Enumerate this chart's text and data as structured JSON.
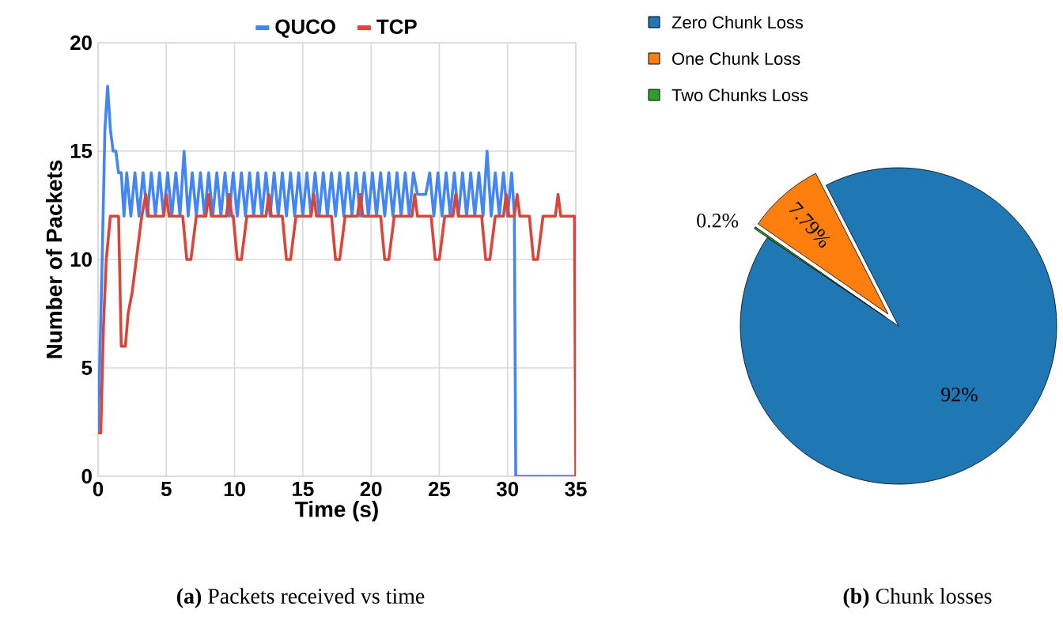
{
  "chart_data": [
    {
      "type": "line",
      "xlabel": "Time (s)",
      "ylabel": "Number of Packets",
      "xlim": [
        0,
        35
      ],
      "ylim": [
        0,
        20
      ],
      "xticks": [
        0,
        5,
        10,
        15,
        20,
        25,
        30,
        35
      ],
      "yticks": [
        0,
        5,
        10,
        15,
        20
      ],
      "grid": true,
      "legend": "top",
      "line_style": "solid",
      "series": [
        {
          "name": "QUCO",
          "color": "#4285f4",
          "x": [
            0,
            0.3,
            0.5,
            0.7,
            0.9,
            1.1,
            1.3,
            1.5,
            1.7,
            1.9,
            2.1,
            2.4,
            2.7,
            3.0,
            3.3,
            3.6,
            3.9,
            4.2,
            4.5,
            4.8,
            5.1,
            5.4,
            5.7,
            6.0,
            6.3,
            6.6,
            6.9,
            7.2,
            7.5,
            7.8,
            8.1,
            8.4,
            8.7,
            9.0,
            9.3,
            9.6,
            9.9,
            10.2,
            10.5,
            10.8,
            11.1,
            11.4,
            11.7,
            12.0,
            12.3,
            12.6,
            12.9,
            13.2,
            13.5,
            13.8,
            14.1,
            14.4,
            14.7,
            15.0,
            15.3,
            15.6,
            15.9,
            16.2,
            16.5,
            16.8,
            17.1,
            17.4,
            17.7,
            18.0,
            18.3,
            18.6,
            18.9,
            19.2,
            19.5,
            19.8,
            20.1,
            20.4,
            20.7,
            21.0,
            21.3,
            21.6,
            21.9,
            22.2,
            22.5,
            22.8,
            23.1,
            23.4,
            23.7,
            24.0,
            24.3,
            24.6,
            24.9,
            25.2,
            25.5,
            25.8,
            26.1,
            26.4,
            26.7,
            27.0,
            27.3,
            27.6,
            27.9,
            28.2,
            28.5,
            28.8,
            29.1,
            29.4,
            29.7,
            30.0,
            30.3,
            30.5,
            30.6,
            35
          ],
          "values": [
            2,
            10,
            16,
            18,
            16,
            15,
            15,
            14,
            14,
            12,
            14,
            12,
            14,
            12,
            14,
            12,
            14,
            12,
            14,
            12,
            14,
            12,
            14,
            12,
            15,
            12,
            14,
            12,
            14,
            12,
            14,
            12,
            14,
            12,
            14,
            12,
            14,
            12,
            14,
            12,
            14,
            12,
            14,
            12,
            14,
            12,
            14,
            12,
            14,
            12,
            14,
            12,
            14,
            12,
            14,
            12,
            14,
            12,
            14,
            12,
            14,
            12,
            14,
            12,
            14,
            12,
            14,
            12,
            14,
            12,
            14,
            12,
            14,
            12,
            14,
            12,
            14,
            12,
            14,
            12,
            14,
            13,
            13,
            13,
            14,
            12,
            14,
            12,
            14,
            12,
            14,
            12,
            14,
            12,
            14,
            12,
            14,
            12,
            15,
            12,
            14,
            12,
            14,
            12,
            14,
            12,
            0,
            0
          ]
        },
        {
          "name": "TCP",
          "color": "#db4437",
          "x": [
            0,
            0.2,
            0.4,
            0.6,
            0.9,
            1.5,
            1.7,
            2.0,
            2.2,
            2.5,
            2.8,
            3.2,
            3.5,
            3.7,
            4.8,
            5.0,
            5.2,
            6.2,
            6.5,
            6.8,
            7.2,
            7.9,
            8.1,
            8.3,
            9.4,
            9.6,
            9.8,
            9.9,
            10.2,
            10.5,
            10.9,
            12.3,
            12.5,
            12.7,
            13.5,
            13.8,
            14.1,
            14.5,
            15.6,
            15.8,
            16.0,
            17.1,
            17.4,
            17.7,
            18.1,
            19.0,
            19.2,
            19.4,
            20.7,
            21.0,
            21.3,
            21.7,
            23.0,
            23.2,
            23.4,
            24.4,
            24.7,
            25.0,
            25.4,
            26.0,
            26.2,
            26.4,
            28.1,
            28.4,
            28.7,
            29.1,
            29.7,
            29.9,
            30.1,
            30.5,
            30.7,
            30.9,
            31.6,
            31.9,
            32.2,
            32.6,
            33.5,
            33.7,
            33.9,
            34.9,
            35
          ],
          "values": [
            2,
            2,
            7,
            10,
            12,
            12,
            6,
            6,
            7.5,
            8.5,
            10,
            12,
            13,
            12,
            12,
            13,
            12,
            12,
            10,
            10,
            12,
            12,
            13,
            12,
            12,
            13,
            12,
            12,
            10,
            10,
            12,
            12,
            13,
            12,
            12,
            10,
            10,
            12,
            12,
            13,
            12,
            12,
            10,
            10,
            12,
            12,
            13,
            12,
            12,
            10,
            10,
            12,
            12,
            13,
            12,
            12,
            10,
            10,
            12,
            12,
            13,
            12,
            12,
            10,
            10,
            12,
            12,
            13,
            12,
            12,
            13,
            12,
            12,
            10,
            10,
            12,
            12,
            13,
            12,
            12,
            0
          ]
        }
      ],
      "annotations": [
        "**(a)** Packets received vs time"
      ]
    },
    {
      "type": "pie",
      "categories": [
        "Zero Chunk Loss",
        "One Chunk Loss",
        "Two Chunks Loss"
      ],
      "values": [
        92,
        7.79,
        0.2
      ],
      "colors": [
        "#1f77b4",
        "#ff7f0e",
        "#2ca02c"
      ],
      "value_labels": [
        "92%",
        "7.79%",
        "0.2%"
      ],
      "legend": "top",
      "annotations": [
        "**(b)** Chunk losses"
      ]
    }
  ]
}
